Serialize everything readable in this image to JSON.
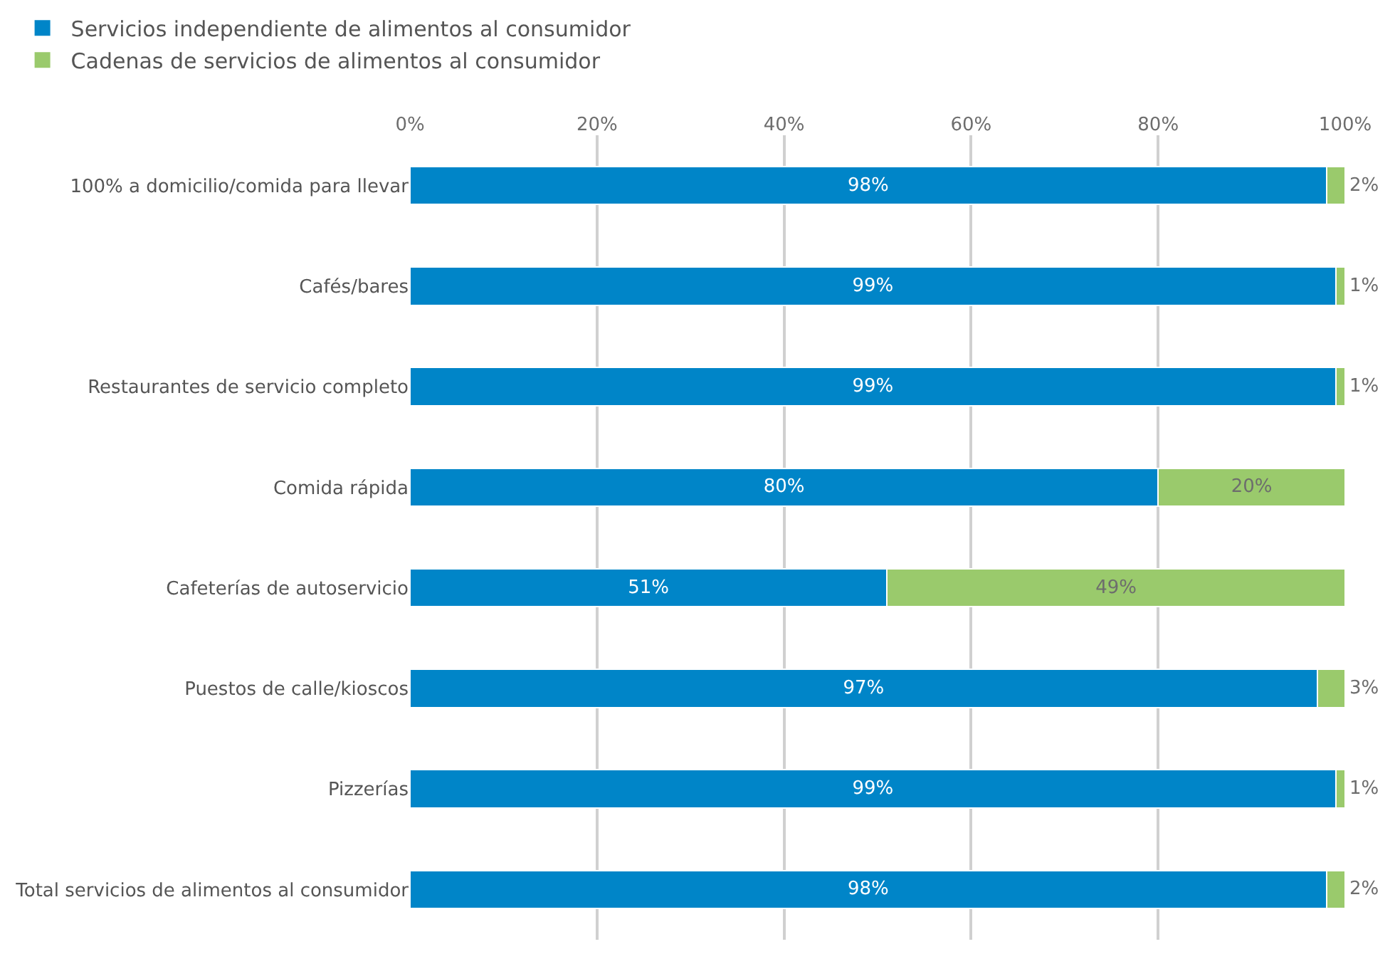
{
  "chart_data": {
    "type": "bar",
    "orientation": "horizontal",
    "stacked": true,
    "categories": [
      "100% a domicilio/comida para llevar",
      "Cafés/bares",
      "Restaurantes de servicio completo",
      "Comida rápida",
      "Cafeterías de autoservicio",
      "Puestos de calle/kioscos",
      "Pizzerías",
      "Total servicios de alimentos al consumidor"
    ],
    "series": [
      {
        "name": "Servicios independiente de alimentos al consumidor",
        "color": "#0085c8",
        "values": [
          98,
          99,
          99,
          80,
          51,
          97,
          99,
          98
        ],
        "value_labels": [
          "98%",
          "99%",
          "99%",
          "80%",
          "51%",
          "97%",
          "99%",
          "98%"
        ]
      },
      {
        "name": "Cadenas de servicios de alimentos al consumidor",
        "color": "#9aca6c",
        "values": [
          2,
          1,
          1,
          20,
          49,
          3,
          1,
          2
        ],
        "value_labels": [
          "2%",
          "1%",
          "1%",
          "20%",
          "49%",
          "3%",
          "1%",
          "2%"
        ]
      }
    ],
    "xlim": [
      0,
      100
    ],
    "xticks": [
      {
        "value": 0,
        "label": "0%"
      },
      {
        "value": 20,
        "label": "20%"
      },
      {
        "value": 40,
        "label": "40%"
      },
      {
        "value": 60,
        "label": "60%"
      },
      {
        "value": 80,
        "label": "80%"
      },
      {
        "value": 100,
        "label": "100%"
      }
    ],
    "grid": "x",
    "legend": "top left"
  }
}
